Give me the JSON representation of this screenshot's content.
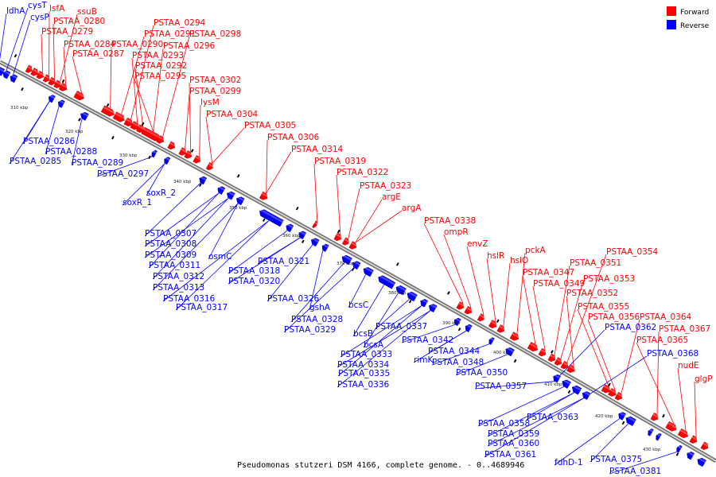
{
  "caption": "Pseudomonas stutzeri DSM 4166, complete genome. - 0..4689946",
  "legend": [
    {
      "label": "Forward",
      "color": "#ff0000"
    },
    {
      "label": "Reverse",
      "color": "#0000ff"
    }
  ],
  "colors": {
    "forward": "#ff0000",
    "reverse": "#0000ff",
    "backbone": "#8a8a8a"
  },
  "ticks": [
    "310 kbp",
    "320 kbp",
    "330 kbp",
    "340 kbp",
    "350 kbp",
    "360 kbp",
    "370 kbp",
    "380 kbp",
    "390 kbp",
    "400 kbp",
    "410 kbp",
    "420 kbp",
    "430 kbp"
  ],
  "forward_labels": [
    "lsfA",
    "ssuB",
    "PSTAA_0280",
    "PSTAA_0279",
    "PSTAA_0284",
    "PSTAA_0287",
    "PSTAA_0294",
    "PSTAA_0291",
    "PSTAA_0298",
    "PSTAA_0290",
    "PSTAA_0296",
    "PSTAA_0293",
    "PSTAA_0292",
    "PSTAA_0295",
    "PSTAA_0302",
    "PSTAA_0299",
    "lysM",
    "PSTAA_0304",
    "PSTAA_0305",
    "PSTAA_0306",
    "PSTAA_0314",
    "PSTAA_0319",
    "PSTAA_0322",
    "PSTAA_0323",
    "argE",
    "argA",
    "PSTAA_0338",
    "ompR",
    "envZ",
    "hslR",
    "hslO",
    "pckA",
    "PSTAA_0347",
    "PSTAA_0349",
    "PSTAA_0354",
    "PSTAA_0351",
    "PSTAA_0353",
    "PSTAA_0352",
    "PSTAA_0355",
    "PSTAA_0356",
    "PSTAA_0364",
    "PSTAA_0367",
    "PSTAA_0365",
    "nudE",
    "glgP"
  ],
  "reverse_labels": [
    "ldhA",
    "cysT",
    "cysP",
    "PSTAA_0286",
    "PSTAA_0288",
    "PSTAA_0285",
    "PSTAA_0289",
    "PSTAA_0297",
    "soxR_2",
    "soxR_1",
    "PSTAA_0307",
    "PSTAA_0308",
    "PSTAA_0309",
    "osmC",
    "PSTAA_0311",
    "PSTAA_0312",
    "PSTAA_0313",
    "PSTAA_0316",
    "PSTAA_0317",
    "PSTAA_0318",
    "PSTAA_0320",
    "PSTAA_0321",
    "PSTAA_0326",
    "gshA",
    "PSTAA_0328",
    "PSTAA_0329",
    "bcsC",
    "bcsB",
    "bcsA",
    "PSTAA_0337",
    "PSTAA_0333",
    "PSTAA_0334",
    "PSTAA_0335",
    "PSTAA_0336",
    "PSTAA_0342",
    "rimK",
    "PSTAA_0344",
    "PSTAA_0348",
    "PSTAA_0350",
    "PSTAA_0357",
    "PSTAA_0362",
    "PSTAA_0368",
    "PSTAA_0358",
    "PSTAA_0363",
    "PSTAA_0359",
    "PSTAA_0360",
    "PSTAA_0361",
    "fdhD-1",
    "PSTAA_0375",
    "PSTAA_0381"
  ]
}
